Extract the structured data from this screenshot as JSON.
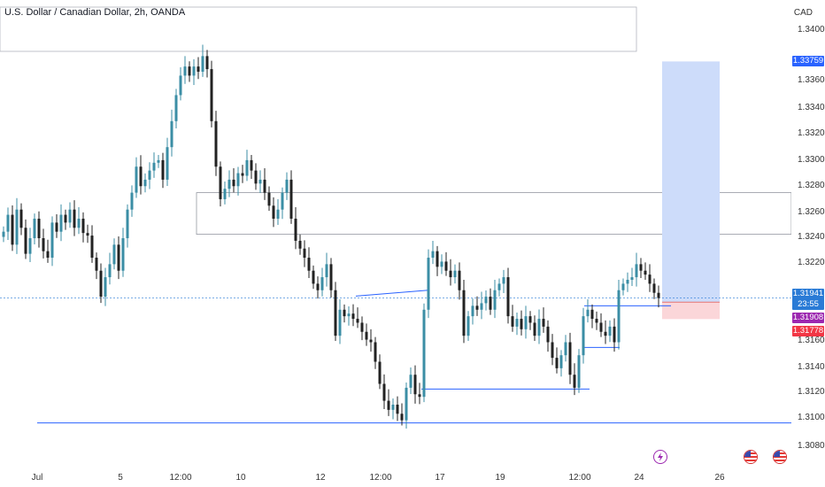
{
  "header": {
    "title": "U.S. Dollar / Canadian Dollar, 2h, OANDA",
    "currency": "CAD"
  },
  "price_axis": {
    "labels": [
      "1.34000",
      "1.33600",
      "1.33400",
      "1.33200",
      "1.33000",
      "1.32800",
      "1.32600",
      "1.32400",
      "1.32200",
      "1.31600",
      "1.31400",
      "1.31200",
      "1.31000",
      "1.30800"
    ]
  },
  "price_tags": {
    "take_profit": {
      "value": "1.33759",
      "color": "#2962ff"
    },
    "current": {
      "value": "1.31941",
      "countdown": "23:55",
      "color": "#2a7bd6"
    },
    "entry": {
      "value": "1.31908",
      "color": "#9c27b0"
    },
    "stop_loss": {
      "value": "1.31778",
      "color": "#f23645"
    }
  },
  "time_axis": {
    "labels": [
      "Jul",
      "5",
      "12:00",
      "10",
      "12",
      "12:00",
      "17",
      "19",
      "12:00",
      "24",
      "26"
    ]
  },
  "colors": {
    "up_candle": "#26a69a",
    "candle_fill_up": "#3b8ea5",
    "down_candle": "#222222",
    "line_blue": "#2962ff",
    "long_zone": "#cddcfa",
    "short_zone": "#fbd6d9"
  },
  "events": {
    "icons": [
      "lightning-icon",
      "us-flag-icon",
      "us-flag-icon"
    ]
  },
  "chart_data": {
    "type": "candlestick",
    "symbol": "USDCAD",
    "timeframe": "2h",
    "ylim": [
      1.307,
      1.342
    ],
    "key_levels": [
      1.3098,
      1.3275,
      1.3243,
      1.3124,
      1.3188,
      1.3194
    ],
    "position": {
      "take_profit": 1.33759,
      "entry": 1.31908,
      "stop_loss": 1.31778
    },
    "close_path": [
      1.3245,
      1.3258,
      1.3235,
      1.3262,
      1.3248,
      1.3228,
      1.324,
      1.3255,
      1.324,
      1.323,
      1.3225,
      1.3252,
      1.3245,
      1.3258,
      1.3252,
      1.3262,
      1.3248,
      1.3255,
      1.3244,
      1.3242,
      1.3225,
      1.3215,
      1.3195,
      1.321,
      1.322,
      1.3235,
      1.3215,
      1.324,
      1.3262,
      1.3275,
      1.3295,
      1.328,
      1.3285,
      1.3292,
      1.3298,
      1.33,
      1.3285,
      1.331,
      1.333,
      1.335,
      1.3365,
      1.3372,
      1.3365,
      1.3372,
      1.3368,
      1.338,
      1.337,
      1.333,
      1.3295,
      1.327,
      1.3278,
      1.3285,
      1.328,
      1.329,
      1.3288,
      1.33,
      1.3292,
      1.3282,
      1.3285,
      1.3275,
      1.3265,
      1.3255,
      1.3262,
      1.3275,
      1.3285,
      1.3255,
      1.3238,
      1.3232,
      1.3225,
      1.3215,
      1.3205,
      1.32,
      1.321,
      1.322,
      1.32,
      1.3165,
      1.3185,
      1.318,
      1.3182,
      1.3178,
      1.3175,
      1.3168,
      1.3162,
      1.316,
      1.3145,
      1.3128,
      1.3115,
      1.3108,
      1.3112,
      1.3105,
      1.31,
      1.3125,
      1.3135,
      1.312,
      1.3118,
      1.3185,
      1.3225,
      1.323,
      1.3218,
      1.3222,
      1.3215,
      1.321,
      1.3215,
      1.32,
      1.3165,
      1.318,
      1.3188,
      1.3185,
      1.319,
      1.3195,
      1.3185,
      1.32,
      1.3205,
      1.321,
      1.318,
      1.3172,
      1.3178,
      1.317,
      1.318,
      1.3175,
      1.3165,
      1.3178,
      1.3172,
      1.316,
      1.3148,
      1.314,
      1.315,
      1.316,
      1.3135,
      1.3125,
      1.315,
      1.318,
      1.3185,
      1.3178,
      1.3175,
      1.3168,
      1.3165,
      1.3172,
      1.316,
      1.32,
      1.3205,
      1.3208,
      1.321,
      1.322,
      1.3215,
      1.3212,
      1.3205,
      1.3198,
      1.3194
    ]
  }
}
